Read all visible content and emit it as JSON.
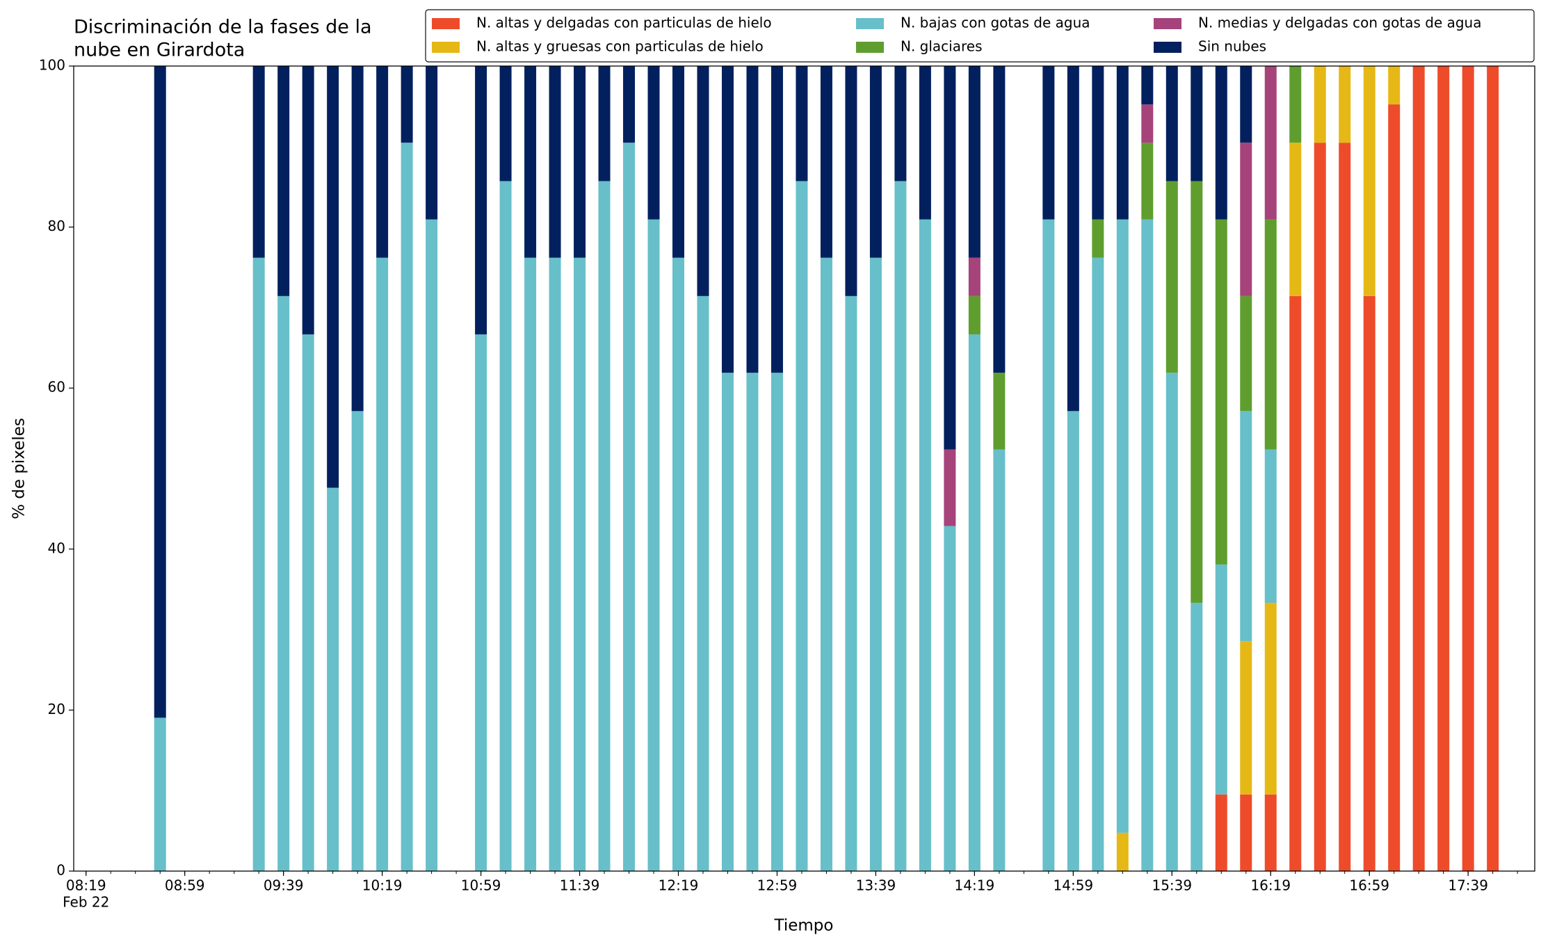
{
  "chart_data": {
    "type": "stacked_bar",
    "title": [
      "Discriminación de la fases de la",
      "nube en Girardota"
    ],
    "xlabel": "Tiempo",
    "ylabel": "% de pixeles",
    "x_date_label": "Feb 22",
    "x": [
      "08:49",
      "09:29",
      "09:39",
      "09:49",
      "09:59",
      "10:09",
      "10:19",
      "10:29",
      "10:39",
      "10:59",
      "11:09",
      "11:19",
      "11:29",
      "11:39",
      "11:49",
      "11:59",
      "12:09",
      "12:19",
      "12:29",
      "12:39",
      "12:49",
      "12:59",
      "13:09",
      "13:19",
      "13:29",
      "13:39",
      "13:49",
      "13:59",
      "14:09",
      "14:19",
      "14:29",
      "14:49",
      "14:59",
      "15:09",
      "15:19",
      "15:29",
      "15:39",
      "15:49",
      "15:59",
      "16:09",
      "16:19",
      "16:29",
      "16:39",
      "16:49",
      "16:59",
      "17:09",
      "17:19",
      "17:29",
      "17:39",
      "17:49"
    ],
    "series": [
      {
        "name": "N. altas y delgadas con particulas de hielo",
        "color": "#ee4b2b",
        "values": [
          0,
          0,
          0,
          0,
          0,
          0,
          0,
          0,
          0,
          0,
          0,
          0,
          0,
          0,
          0,
          0,
          0,
          0,
          0,
          0,
          0,
          0,
          0,
          0,
          0,
          0,
          0,
          0,
          0,
          0,
          0,
          0,
          0,
          0,
          0,
          0,
          0,
          0,
          9.52,
          9.52,
          9.52,
          71.43,
          90.48,
          90.48,
          71.43,
          95.24,
          100,
          100,
          100,
          100
        ]
      },
      {
        "name": "N. altas y gruesas con particulas de hielo",
        "color": "#e6b816",
        "values": [
          0,
          0,
          0,
          0,
          0,
          0,
          0,
          0,
          0,
          0,
          0,
          0,
          0,
          0,
          0,
          0,
          0,
          0,
          0,
          0,
          0,
          0,
          0,
          0,
          0,
          0,
          0,
          0,
          0,
          0,
          0,
          0,
          0,
          0,
          4.76,
          0,
          0,
          0,
          0,
          19.05,
          23.81,
          19.05,
          9.52,
          9.52,
          28.57,
          4.76,
          0,
          0,
          0,
          0
        ]
      },
      {
        "name": "N. bajas con gotas de agua",
        "color": "#67bfc9",
        "values": [
          19.05,
          76.19,
          71.43,
          66.67,
          47.62,
          57.14,
          76.19,
          90.48,
          80.95,
          66.67,
          85.71,
          76.19,
          76.19,
          76.19,
          85.71,
          90.48,
          80.95,
          76.19,
          71.43,
          61.9,
          61.9,
          61.9,
          85.71,
          76.19,
          71.43,
          76.19,
          85.71,
          80.95,
          42.86,
          66.67,
          52.38,
          80.95,
          57.14,
          76.19,
          76.19,
          80.95,
          61.9,
          33.33,
          28.57,
          28.57,
          19.05,
          0,
          0,
          0,
          0,
          0,
          0,
          0,
          0,
          0
        ]
      },
      {
        "name": "N. glaciares",
        "color": "#5f9e2e",
        "values": [
          0,
          0,
          0,
          0,
          0,
          0,
          0,
          0,
          0,
          0,
          0,
          0,
          0,
          0,
          0,
          0,
          0,
          0,
          0,
          0,
          0,
          0,
          0,
          0,
          0,
          0,
          0,
          0,
          0,
          4.76,
          9.52,
          0,
          0,
          4.76,
          0,
          9.52,
          23.81,
          52.38,
          42.86,
          14.29,
          28.57,
          9.52,
          0,
          0,
          0,
          0,
          0,
          0,
          0,
          0
        ]
      },
      {
        "name": "N. medias y delgadas con gotas de agua",
        "color": "#a6437a",
        "values": [
          0,
          0,
          0,
          0,
          0,
          0,
          0,
          0,
          0,
          0,
          0,
          0,
          0,
          0,
          0,
          0,
          0,
          0,
          0,
          0,
          0,
          0,
          0,
          0,
          0,
          0,
          0,
          0,
          9.52,
          4.76,
          0,
          0,
          0,
          0,
          0,
          4.76,
          0,
          0,
          0,
          19.05,
          19.05,
          0,
          0,
          0,
          0,
          0,
          0,
          0,
          0,
          0
        ]
      },
      {
        "name": "Sin nubes",
        "color": "#03205e",
        "values": [
          80.95,
          23.81,
          28.57,
          33.33,
          52.38,
          42.86,
          23.81,
          9.52,
          19.05,
          33.33,
          14.29,
          23.81,
          23.81,
          23.81,
          14.29,
          9.52,
          19.05,
          23.81,
          28.57,
          38.1,
          38.1,
          38.1,
          14.29,
          23.81,
          28.57,
          23.81,
          14.29,
          19.05,
          47.62,
          23.81,
          38.1,
          19.05,
          42.86,
          19.05,
          19.05,
          4.76,
          14.29,
          14.29,
          19.05,
          9.52,
          0,
          0,
          0,
          0,
          0,
          0,
          0,
          0,
          0,
          0
        ]
      }
    ],
    "xlim": [
      "08:14",
      "18:06"
    ],
    "xticks": [
      "08:19",
      "08:59",
      "09:39",
      "10:19",
      "10:59",
      "11:39",
      "12:19",
      "12:59",
      "13:39",
      "14:19",
      "14:59",
      "15:39",
      "16:19",
      "16:59",
      "17:39"
    ],
    "xminorticks": [
      "08:19",
      "08:29",
      "08:39",
      "08:49",
      "08:59",
      "09:09",
      "09:19",
      "09:29",
      "09:39",
      "09:49",
      "09:59",
      "10:09",
      "10:19",
      "10:29",
      "10:39",
      "10:49",
      "10:59",
      "11:09",
      "11:19",
      "11:29",
      "11:39",
      "11:49",
      "11:59",
      "12:09",
      "12:19",
      "12:29",
      "12:39",
      "12:49",
      "12:59",
      "13:09",
      "13:19",
      "13:29",
      "13:39",
      "13:49",
      "13:59",
      "14:09",
      "14:19",
      "14:29",
      "14:39",
      "14:49",
      "14:59",
      "15:09",
      "15:19",
      "15:29",
      "15:39",
      "15:49",
      "15:59",
      "16:09",
      "16:19",
      "16:29",
      "16:39",
      "16:49",
      "16:59",
      "17:09",
      "17:19",
      "17:29",
      "17:39",
      "17:49",
      "17:59"
    ],
    "ylim": [
      0,
      100
    ],
    "yticks": [
      0,
      20,
      40,
      60,
      80,
      100
    ],
    "grid": false,
    "legend": "upper right"
  }
}
